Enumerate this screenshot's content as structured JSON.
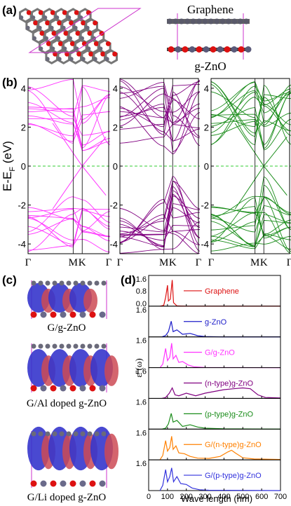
{
  "panels": {
    "a": {
      "label": "(a)",
      "top_label": "Graphene",
      "bottom_label": "g-ZnO"
    },
    "b": {
      "label": "(b)",
      "ylabel_main": "E-E",
      "ylabel_sub": "F",
      "ylabel_unit": " (eV)",
      "yticks": [
        "4",
        "2",
        "0",
        "-2",
        "-4"
      ],
      "kpoints": [
        "Γ",
        "M",
        "K",
        "Γ"
      ],
      "fermi_color": "#33cc33",
      "band_colors": [
        "#ff33ff",
        "#800080",
        "#1a8c1a"
      ]
    },
    "c": {
      "label": "(c)",
      "structures": [
        "G/g-ZnO",
        "G/Al doped g-ZnO",
        "G/Li doped g-ZnO"
      ]
    },
    "d": {
      "label": "(d)",
      "ylabel": "ε''(ω)",
      "ytick_top": "1.6",
      "ytick_mid": "0.8",
      "ytick_bot": "0.0"
    }
  },
  "chart_data": {
    "type": "line",
    "xlabel": "Wave length (nm)",
    "xlim": [
      0,
      700
    ],
    "xticks": [
      "0",
      "100",
      "200",
      "300",
      "400",
      "500",
      "600",
      "700"
    ],
    "series": [
      {
        "name": "Graphene",
        "color": "#dd1111",
        "points": [
          [
            60,
            0
          ],
          [
            80,
            0.05
          ],
          [
            90,
            0.5
          ],
          [
            100,
            1.2
          ],
          [
            105,
            0.3
          ],
          [
            115,
            0.4
          ],
          [
            125,
            1.5
          ],
          [
            132,
            0.2
          ],
          [
            150,
            0.02
          ],
          [
            200,
            0
          ],
          [
            700,
            0
          ]
        ]
      },
      {
        "name": "g-ZnO",
        "color": "#1c1cc9",
        "points": [
          [
            70,
            0
          ],
          [
            90,
            0.08
          ],
          [
            105,
            0.3
          ],
          [
            120,
            0.9
          ],
          [
            130,
            0.3
          ],
          [
            150,
            0.4
          ],
          [
            180,
            0.15
          ],
          [
            220,
            0.2
          ],
          [
            260,
            0.07
          ],
          [
            300,
            0.02
          ],
          [
            400,
            0
          ],
          [
            700,
            0
          ]
        ]
      },
      {
        "name": "G/g-ZnO",
        "color": "#ff33ff",
        "points": [
          [
            60,
            0
          ],
          [
            75,
            0.2
          ],
          [
            90,
            1.1
          ],
          [
            100,
            0.4
          ],
          [
            112,
            0.6
          ],
          [
            122,
            1.4
          ],
          [
            130,
            0.5
          ],
          [
            145,
            0.7
          ],
          [
            160,
            0.3
          ],
          [
            180,
            0.35
          ],
          [
            210,
            0.15
          ],
          [
            240,
            0.05
          ],
          [
            300,
            0.01
          ],
          [
            700,
            0
          ]
        ]
      },
      {
        "name": "(n-type)g-ZnO",
        "color": "#800080",
        "points": [
          [
            70,
            0
          ],
          [
            90,
            0.05
          ],
          [
            110,
            0.3
          ],
          [
            125,
            0.6
          ],
          [
            140,
            0.2
          ],
          [
            160,
            0.15
          ],
          [
            200,
            0.3
          ],
          [
            250,
            0.15
          ],
          [
            300,
            0.3
          ],
          [
            400,
            0.5
          ],
          [
            450,
            0.55
          ],
          [
            500,
            0.6
          ],
          [
            540,
            0.55
          ],
          [
            580,
            0.2
          ],
          [
            620,
            0.05
          ],
          [
            700,
            0.02
          ]
        ]
      },
      {
        "name": "(p-type)g-ZnO",
        "color": "#1a8c1a",
        "points": [
          [
            70,
            0
          ],
          [
            90,
            0.05
          ],
          [
            105,
            0.3
          ],
          [
            120,
            0.9
          ],
          [
            130,
            0.4
          ],
          [
            150,
            0.5
          ],
          [
            180,
            0.15
          ],
          [
            220,
            0.25
          ],
          [
            260,
            0.12
          ],
          [
            300,
            0.05
          ],
          [
            400,
            0.02
          ],
          [
            700,
            0
          ]
        ]
      },
      {
        "name": "G/(n-type)g-ZnO",
        "color": "#ff8000",
        "points": [
          [
            60,
            0
          ],
          [
            75,
            0.25
          ],
          [
            90,
            1.1
          ],
          [
            100,
            0.5
          ],
          [
            112,
            0.7
          ],
          [
            122,
            1.35
          ],
          [
            130,
            0.6
          ],
          [
            145,
            0.8
          ],
          [
            160,
            0.4
          ],
          [
            190,
            0.35
          ],
          [
            220,
            0.2
          ],
          [
            260,
            0.1
          ],
          [
            320,
            0.08
          ],
          [
            380,
            0.2
          ],
          [
            420,
            0.45
          ],
          [
            440,
            0.55
          ],
          [
            460,
            0.4
          ],
          [
            500,
            0.12
          ],
          [
            560,
            0.05
          ],
          [
            700,
            0.02
          ]
        ]
      },
      {
        "name": "G/(p-type)g-ZnO",
        "color": "#3333dd",
        "points": [
          [
            60,
            0
          ],
          [
            75,
            0.3
          ],
          [
            90,
            1.2
          ],
          [
            100,
            0.5
          ],
          [
            112,
            0.8
          ],
          [
            122,
            1.3
          ],
          [
            132,
            0.5
          ],
          [
            150,
            0.8
          ],
          [
            170,
            0.4
          ],
          [
            200,
            0.35
          ],
          [
            230,
            0.15
          ],
          [
            270,
            0.05
          ],
          [
            320,
            0.02
          ],
          [
            700,
            0
          ]
        ]
      }
    ]
  }
}
